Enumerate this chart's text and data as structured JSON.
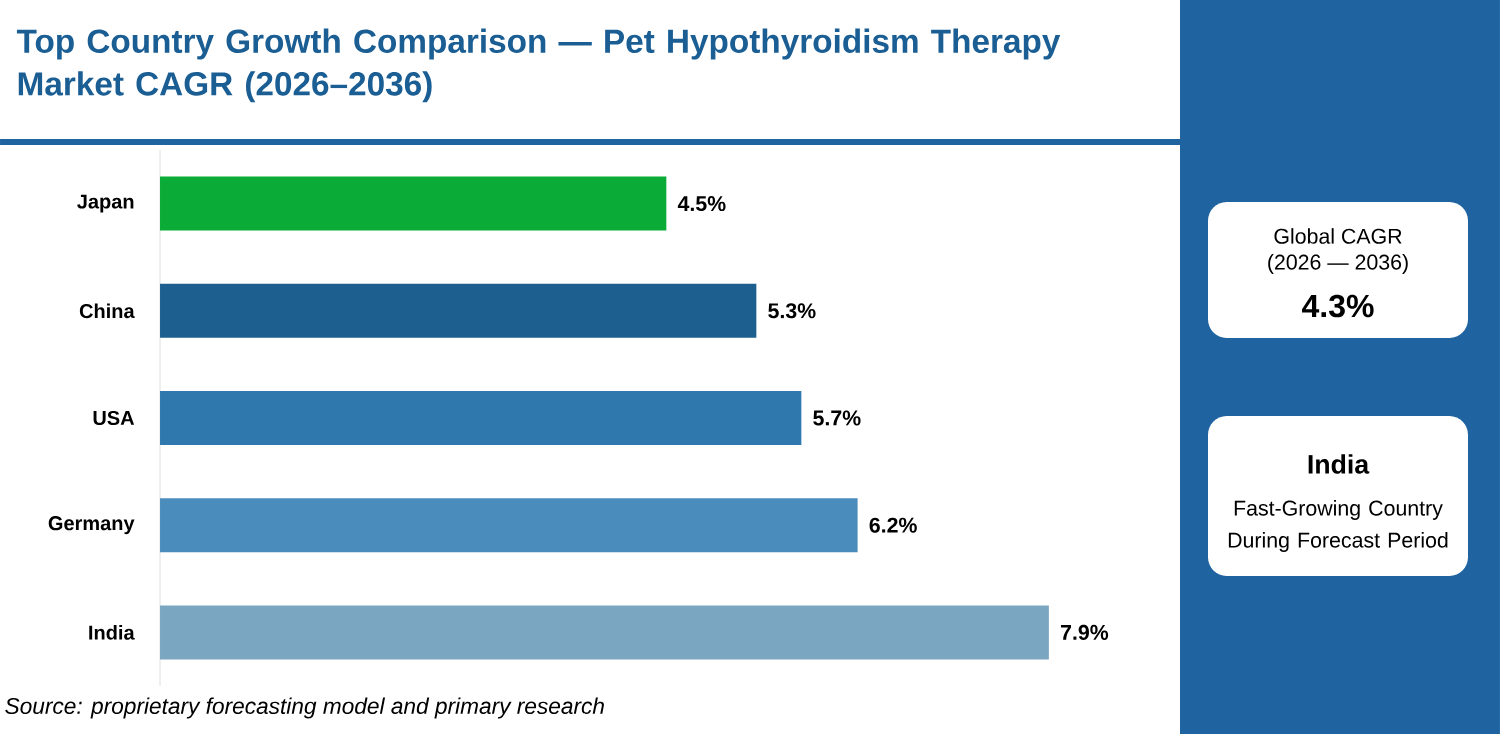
{
  "chart_data": {
    "type": "bar",
    "orientation": "horizontal",
    "title": "Top Country Growth Comparison — Pet Hypothyroidism Therapy Market CAGR (2026–2036)",
    "categories": [
      "Japan",
      "China",
      "USA",
      "Germany",
      "India"
    ],
    "values": [
      4.5,
      5.3,
      5.7,
      6.2,
      7.9
    ],
    "colors": [
      "#0aab36",
      "#1d5f8e",
      "#2f78ad",
      "#4a8dbc",
      "#7ba6c1"
    ],
    "value_labels": [
      "4.5%",
      "5.3%",
      "5.7%",
      "6.2%",
      "7.9%"
    ],
    "annotations": [
      "Source: proprietary forecasting model and primary research",
      "Global CAGR",
      "(2026 — 2036)",
      "4.3%",
      "India",
      "Fast-Growing Country During Forecast Period"
    ]
  }
}
